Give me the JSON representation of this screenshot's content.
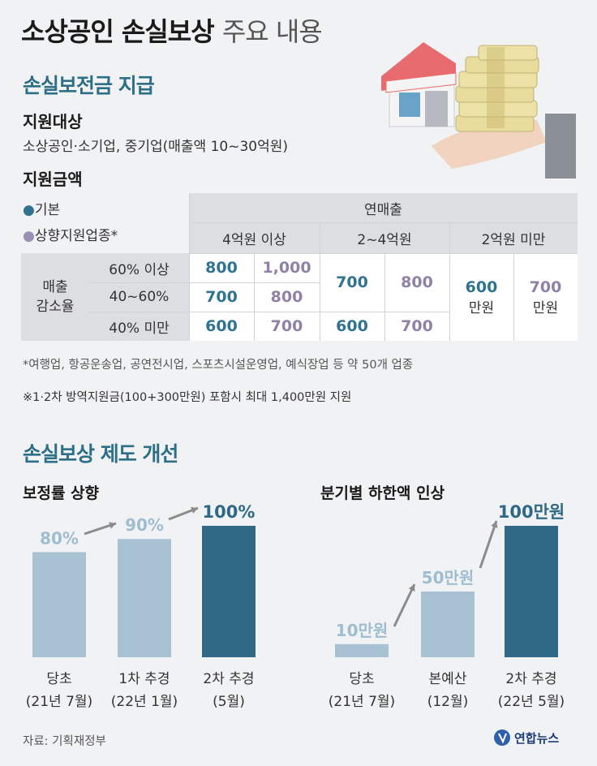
{
  "header": {
    "title_bold": "소상공인 손실보상",
    "title_light": "주요 내용"
  },
  "section1": {
    "title": "손실보전금 지급",
    "target_label": "지원대상",
    "target_text": "소상공인·소기업, 중기업(매출액 10~30억원)",
    "amount_label": "지원금액",
    "legend_basic_marker": "●",
    "legend_basic": "기본",
    "legend_upward_marker": "●",
    "legend_upward": "상향지원업종*",
    "legend_colors": {
      "basic": "#2f7391",
      "upward": "#9a90b6"
    }
  },
  "table": {
    "header_top": "연매출",
    "columns": [
      "4억원 이상",
      "2~4억원",
      "2억원 미만"
    ],
    "row_group": "매출\n감소율",
    "rows": [
      "60% 이상",
      "40~60%",
      "40% 미만"
    ],
    "col1": [
      {
        "basic": "800",
        "upward": "1,000"
      },
      {
        "basic": "700",
        "upward": "800"
      },
      {
        "basic": "600",
        "upward": "700"
      }
    ],
    "col2_merged": {
      "basic": "700",
      "upward": "800"
    },
    "col2_last": {
      "basic": "600",
      "upward": "700"
    },
    "col3": {
      "basic": "600",
      "basic_unit": "만원",
      "upward": "700",
      "upward_unit": "만원"
    }
  },
  "notes": {
    "note1": "*여행업, 항공운송업, 공연전시업, 스포츠시설운영업, 예식장업 등 약 50개 업종",
    "note2": "※1·2차 방역지원금(100+300만원) 포함시 최대 1,400만원 지원"
  },
  "section2": {
    "title": "손실보상 제도 개선"
  },
  "chart_data": [
    {
      "type": "bar",
      "title": "보정률 상향",
      "categories": [
        "당초\n(21년 7월)",
        "1차 추경\n(22년 1월)",
        "2차 추경\n(5월)"
      ],
      "values": [
        80,
        90,
        100
      ],
      "value_labels": [
        "80%",
        "90%",
        "100%"
      ],
      "colors": [
        "#a9c2d3",
        "#a9c2d3",
        "#2f6985"
      ],
      "label_colors": [
        "#9fbdd0",
        "#9fbdd0",
        "#2f6985"
      ],
      "ylim": [
        0,
        100
      ]
    },
    {
      "type": "bar",
      "title": "분기별 하한액 인상",
      "categories": [
        "당초\n(21년 7월)",
        "본예산\n(12월)",
        "2차 추경\n(22년 5월)"
      ],
      "values": [
        10,
        50,
        100
      ],
      "value_labels": [
        "10만원",
        "50만원",
        "100만원"
      ],
      "colors": [
        "#a9c2d3",
        "#a9c2d3",
        "#2f6985"
      ],
      "label_colors": [
        "#9fbdd0",
        "#9fbdd0",
        "#2f6985"
      ],
      "ylim": [
        0,
        100
      ]
    }
  ],
  "footer": {
    "source": "자료: 기획재정부",
    "logo_text": "연합뉴스"
  }
}
